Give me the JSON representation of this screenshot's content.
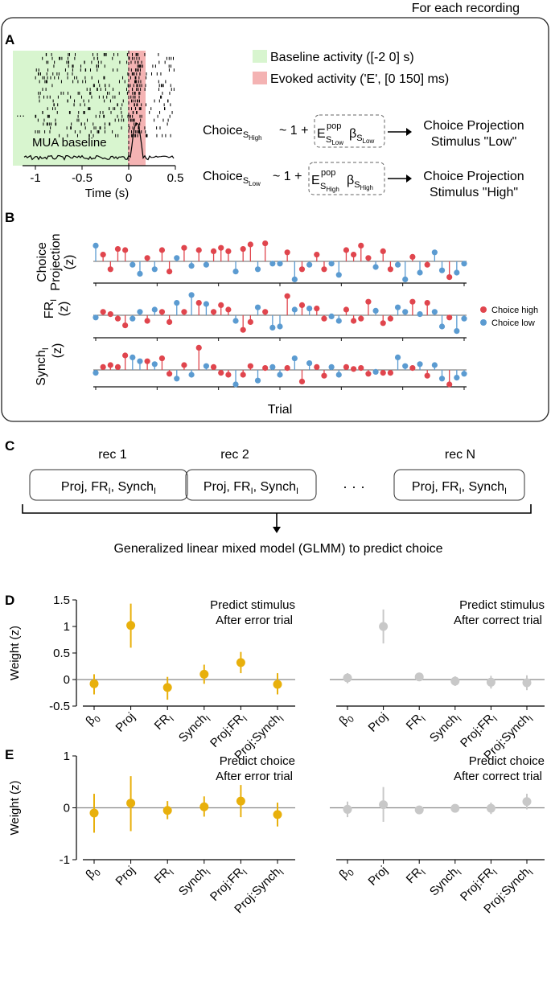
{
  "header": {
    "for_each": "For each recording"
  },
  "panel_labels": {
    "a": "A",
    "b": "B",
    "c": "C",
    "d": "D",
    "e": "E"
  },
  "panel_a": {
    "legend_baseline": "Baseline activity ([-2 0] s)",
    "legend_evoked": "Evoked activity ('E', [0 150] ms)",
    "legend_baseline_color": "#d8f5cf",
    "legend_evoked_color": "#f4b3b3",
    "raster_ellipsis": "...",
    "mua_label": "MUA baseline",
    "x_ticks": [
      "-1",
      "-0.5",
      "0",
      "0.5"
    ],
    "x_label": "Time (s)",
    "eq1": {
      "lhs": "Choice",
      "lhs_sub": "S",
      "lhs_subsub": "High",
      "model": "~ 1 +",
      "e": "E",
      "e_sup": "pop",
      "e_sub": "S",
      "e_subsub": "Low",
      "beta": "β",
      "beta_sub": "S",
      "beta_subsub": "Low",
      "out1": "Choice Projection",
      "out2": "Stimulus \"Low\""
    },
    "eq2": {
      "lhs": "Choice",
      "lhs_sub": "S",
      "lhs_subsub": "Low",
      "model": "~ 1 +",
      "e": "E",
      "e_sup": "pop",
      "e_sub": "S",
      "e_subsub": "High",
      "beta": "β",
      "beta_sub": "S",
      "beta_subsub": "High",
      "out1": "Choice Projection",
      "out2": "Stimulus \"High\""
    }
  },
  "panel_b": {
    "row1": {
      "line1": "Choice",
      "line2": "Projection",
      "line3": "(z)"
    },
    "row2": {
      "line1": "FR",
      "sub": "I",
      "line2": "(z)"
    },
    "row3": {
      "line1": "Synch",
      "sub": "I",
      "line2": "(z)"
    },
    "x_label": "Trial",
    "legend": [
      {
        "label": "Choice high",
        "color": "#e0454d"
      },
      {
        "label": "Choice low",
        "color": "#5b9bd1"
      }
    ],
    "colors": {
      "high": "#e0454d",
      "low": "#5b9bd1"
    },
    "n_trials": 51,
    "trial_choice": [
      0,
      1,
      1,
      1,
      1,
      0,
      0,
      1,
      0,
      1,
      1,
      0,
      1,
      0,
      1,
      0,
      1,
      1,
      1,
      0,
      1,
      1,
      0,
      1,
      0,
      0,
      1,
      0,
      1,
      0,
      1,
      1,
      0,
      0,
      1,
      1,
      1,
      1,
      0,
      1,
      1,
      0,
      0,
      1,
      0,
      1,
      0,
      0,
      1,
      0,
      0
    ],
    "series": [
      {
        "name": "Choice Projection",
        "values": [
          1.4,
          0.6,
          -0.7,
          1.1,
          1.0,
          -0.3,
          -1.1,
          0.3,
          -0.7,
          1.0,
          -0.9,
          0.3,
          1.2,
          -0.4,
          1.0,
          -0.3,
          0.9,
          1.2,
          0.9,
          -0.9,
          1.1,
          1.5,
          -0.7,
          1.6,
          -0.2,
          -0.2,
          0.8,
          -1.6,
          -0.7,
          -0.3,
          0.6,
          -0.7,
          -0.2,
          -1.2,
          1.0,
          0.6,
          1.4,
          0.3,
          -0.5,
          0.9,
          -0.7,
          -0.3,
          -1.6,
          0.4,
          -1.0,
          -0.3,
          0.8,
          -0.8,
          -1.4,
          -1.0,
          -0.2
        ]
      },
      {
        "name": "FR_I",
        "values": [
          -0.2,
          0.3,
          0.1,
          -0.3,
          -0.9,
          -0.3,
          0.3,
          -0.5,
          0.5,
          0.3,
          -0.6,
          1.1,
          0.3,
          1.8,
          1.1,
          1.0,
          0.3,
          0.9,
          0.5,
          -0.5,
          -1.3,
          -0.6,
          0.7,
          0.3,
          -1.1,
          -1.0,
          1.7,
          0.5,
          0.9,
          0.6,
          0.6,
          -0.3,
          -0.1,
          -0.5,
          0.5,
          -0.5,
          -0.3,
          1.2,
          0.4,
          -0.7,
          -0.3,
          0.7,
          0.3,
          1.2,
          0.1,
          1.1,
          0.3,
          -1.0,
          -0.2,
          -1.4,
          -0.3
        ]
      },
      {
        "name": "Synch_I",
        "values": [
          -0.3,
          0.3,
          0.5,
          0.3,
          1.5,
          1.3,
          0.9,
          0.9,
          0.6,
          1.2,
          -0.4,
          -0.9,
          0.5,
          -0.5,
          2.3,
          0.4,
          0.3,
          -0.3,
          -0.5,
          -1.5,
          -0.5,
          0.4,
          -1.1,
          0.2,
          0.3,
          -0.5,
          0.2,
          1.2,
          -1.2,
          0.7,
          0.3,
          -0.6,
          0.3,
          -0.5,
          0.3,
          0.1,
          0.2,
          -0.4,
          -0.2,
          -0.3,
          -0.3,
          1.3,
          0.4,
          0.2,
          0.6,
          -0.6,
          0.5,
          -0.9,
          -1.5,
          -0.8,
          -0.4
        ]
      }
    ]
  },
  "panel_c": {
    "recs": [
      {
        "title": "rec 1",
        "box": "Proj, FR",
        "box_sub": "I",
        "box_tail": ", Synch",
        "box_sub2": "I"
      },
      {
        "title": "rec 2",
        "box": "Proj, FR",
        "box_sub": "I",
        "box_tail": ", Synch",
        "box_sub2": "I"
      },
      {
        "title": "rec N",
        "box": "Proj, FR",
        "box_sub": "I",
        "box_tail": ", Synch",
        "box_sub2": "I"
      }
    ],
    "ellipsis": "· · ·",
    "caption": "Generalized linear mixed model (GLMM) to predict choice"
  },
  "chart_data": [
    {
      "type": "scatter",
      "panel": "D-left",
      "title_line1": "Predict stimulus",
      "title_line2": "After error trial",
      "ylabel": "Weight (z)",
      "ylim": [
        -0.5,
        1.5
      ],
      "y_ticks": [
        "1.5",
        "1",
        "0.5",
        "0",
        "-0.5"
      ],
      "y_tick_values": [
        1.5,
        1,
        0.5,
        0,
        -0.5
      ],
      "categories": [
        "β0",
        "Proj",
        "FR_I",
        "Synch_I",
        "Proj:FR_I",
        "Proj:Synch_I"
      ],
      "values": [
        -0.08,
        1.02,
        -0.15,
        0.1,
        0.32,
        -0.09
      ],
      "err_low": [
        -0.28,
        0.6,
        -0.38,
        -0.08,
        0.12,
        -0.28
      ],
      "err_high": [
        0.1,
        1.43,
        0.05,
        0.28,
        0.52,
        0.12
      ],
      "color": "#e8b00c"
    },
    {
      "type": "scatter",
      "panel": "D-right",
      "title_line1": "Predict stimulus",
      "title_line2": "After correct trial",
      "ylim": [
        -0.5,
        1.5
      ],
      "categories": [
        "β0",
        "Proj",
        "FR_I",
        "Synch_I",
        "Proj:FR_I",
        "Proj:Synch_I"
      ],
      "values": [
        0.03,
        1.0,
        0.05,
        -0.03,
        -0.05,
        -0.06
      ],
      "err_low": [
        -0.07,
        0.68,
        -0.03,
        -0.12,
        -0.17,
        -0.2
      ],
      "err_high": [
        0.12,
        1.32,
        0.13,
        0.06,
        0.07,
        0.08
      ],
      "color": "#c8c8c8"
    },
    {
      "type": "scatter",
      "panel": "E-left",
      "title_line1": "Predict choice",
      "title_line2": "After error trial",
      "ylabel": "Weight (z)",
      "ylim": [
        -1,
        1
      ],
      "y_ticks": [
        "1",
        "0",
        "-1"
      ],
      "y_tick_values": [
        1,
        0,
        -1
      ],
      "categories": [
        "β0",
        "Proj",
        "FR_I",
        "Synch_I",
        "Proj:FR_I",
        "Proj:Synch_I"
      ],
      "values": [
        -0.1,
        0.09,
        -0.05,
        0.02,
        0.13,
        -0.13
      ],
      "err_low": [
        -0.48,
        -0.45,
        -0.22,
        -0.17,
        -0.18,
        -0.36
      ],
      "err_high": [
        0.27,
        0.61,
        0.13,
        0.22,
        0.44,
        0.1
      ],
      "color": "#e8b00c"
    },
    {
      "type": "scatter",
      "panel": "E-right",
      "title_line1": "Predict choice",
      "title_line2": "After correct trial",
      "ylim": [
        -1,
        1
      ],
      "categories": [
        "β0",
        "Proj",
        "FR_I",
        "Synch_I",
        "Proj:FR_I",
        "Proj:Synch_I"
      ],
      "values": [
        -0.03,
        0.06,
        -0.04,
        -0.01,
        -0.01,
        0.12
      ],
      "err_low": [
        -0.18,
        -0.27,
        -0.12,
        -0.08,
        -0.12,
        -0.03
      ],
      "err_high": [
        0.12,
        0.4,
        0.04,
        0.06,
        0.1,
        0.27
      ],
      "color": "#c8c8c8"
    }
  ],
  "tick_label_parts": [
    {
      "main": "β",
      "sub": "0"
    },
    {
      "main": "Proj",
      "sub": ""
    },
    {
      "main": "FR",
      "sub": "I"
    },
    {
      "main": "Synch",
      "sub": "I"
    },
    {
      "main": "Proj:FR",
      "sub": "I"
    },
    {
      "main": "Proj:Synch",
      "sub": "I"
    }
  ]
}
